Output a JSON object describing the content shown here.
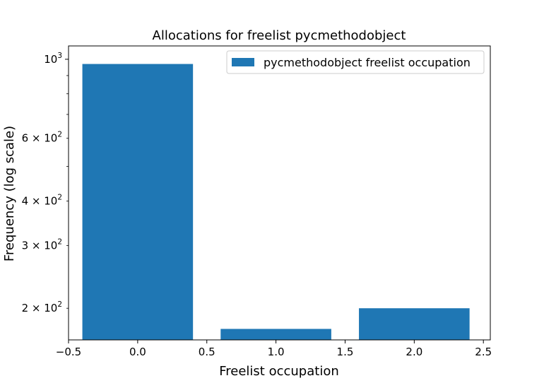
{
  "chart_data": {
    "type": "bar",
    "title": "Allocations for freelist pycmethodobject",
    "xlabel": "Freelist occupation",
    "ylabel": "Frequency (log scale)",
    "yscale": "log",
    "xlim": [
      -0.5,
      2.55
    ],
    "ylim": [
      163,
      1090
    ],
    "bar_width": 0.8,
    "grid": false,
    "legend_position": "upper right",
    "series": [
      {
        "name": "pycmethodobject freelist occupation",
        "color": "#1f77b4",
        "x": [
          0,
          1,
          2
        ],
        "values": [
          970,
          175,
          200
        ]
      }
    ],
    "x_ticks": [
      {
        "value": -0.5,
        "label": "−0.5"
      },
      {
        "value": 0.0,
        "label": "0.0"
      },
      {
        "value": 0.5,
        "label": "0.5"
      },
      {
        "value": 1.0,
        "label": "1.0"
      },
      {
        "value": 1.5,
        "label": "1.5"
      },
      {
        "value": 2.0,
        "label": "2.0"
      },
      {
        "value": 2.5,
        "label": "2.5"
      }
    ],
    "y_major_ticks": [
      {
        "value": 1000,
        "base": "10",
        "exp": "3",
        "mult": ""
      }
    ],
    "y_minor_ticks": [
      {
        "value": 200,
        "base": "10",
        "exp": "2",
        "mult": "2 × "
      },
      {
        "value": 300,
        "base": "10",
        "exp": "2",
        "mult": "3 × "
      },
      {
        "value": 400,
        "base": "10",
        "exp": "2",
        "mult": "4 × "
      },
      {
        "value": 500,
        "base": "",
        "exp": "",
        "mult": ""
      },
      {
        "value": 600,
        "base": "10",
        "exp": "2",
        "mult": "6 × "
      },
      {
        "value": 700,
        "base": "",
        "exp": "",
        "mult": ""
      },
      {
        "value": 800,
        "base": "",
        "exp": "",
        "mult": ""
      },
      {
        "value": 900,
        "base": "",
        "exp": "",
        "mult": ""
      }
    ]
  }
}
